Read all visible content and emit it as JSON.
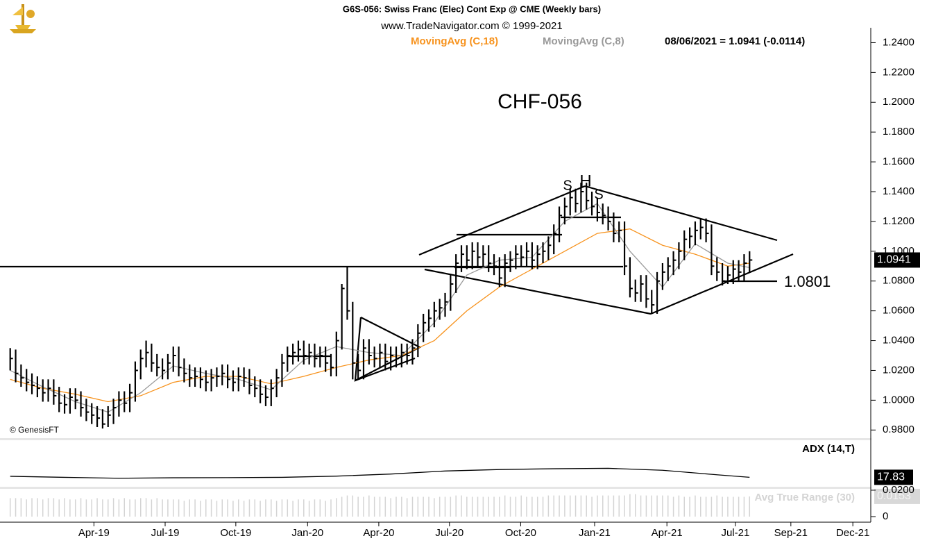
{
  "header": {
    "title": "G6S-056:  Swiss Franc (Elec) Cont Exp @ CME  (Weekly bars)",
    "subtitle": "www.TradeNavigator.com © 1999-2021",
    "quote": "08/06/2021 = 1.0941 (-0.0114)",
    "copyright": "© GenesisFT"
  },
  "chart_data": [
    {
      "type": "ohlc",
      "title": "CHF-056",
      "annotations": [
        "S",
        "H",
        "S",
        "1.0801"
      ],
      "color": "#000000",
      "xlim": [
        -0.6,
        158.3
      ],
      "xticks": [
        {
          "value": 15.4,
          "label": "Apr-19"
        },
        {
          "value": 28.5,
          "label": "Jul-19"
        },
        {
          "value": 41.5,
          "label": "Oct-19"
        },
        {
          "value": 54.7,
          "label": "Jan-20"
        },
        {
          "value": 67.8,
          "label": "Apr-20"
        },
        {
          "value": 80.8,
          "label": "Jul-20"
        },
        {
          "value": 93.9,
          "label": "Oct-20"
        },
        {
          "value": 107.5,
          "label": "Jan-21"
        },
        {
          "value": 120.8,
          "label": "Apr-21"
        },
        {
          "value": 133.4,
          "label": "Jul-21"
        },
        {
          "value": 143.6,
          "label": "Sep-21"
        },
        {
          "value": 155.0,
          "label": "Dec-21"
        }
      ],
      "ylim": [
        0.975,
        1.25
      ],
      "yticks": [
        {
          "value": 0.98,
          "label": "0.9800"
        },
        {
          "value": 1.0,
          "label": "1.0000"
        },
        {
          "value": 1.02,
          "label": "1.0200"
        },
        {
          "value": 1.04,
          "label": "1.0400"
        },
        {
          "value": 1.06,
          "label": "1.0600"
        },
        {
          "value": 1.08,
          "label": "1.0800"
        },
        {
          "value": 1.1,
          "label": "1.1000"
        },
        {
          "value": 1.12,
          "label": "1.1200"
        },
        {
          "value": 1.14,
          "label": "1.1400"
        },
        {
          "value": 1.16,
          "label": "1.1600"
        },
        {
          "value": 1.18,
          "label": "1.1800"
        },
        {
          "value": 1.2,
          "label": "1.2000"
        },
        {
          "value": 1.22,
          "label": "1.2200"
        },
        {
          "value": 1.24,
          "label": "1.2400"
        }
      ],
      "high": [
        1.035,
        1.034,
        1.024,
        1.021,
        1.018,
        1.016,
        1.014,
        1.014,
        1.014,
        1.009,
        1.004,
        1.008,
        1.008,
        1.006,
        1.001,
        0.998,
        0.996,
        0.994,
        0.996,
        1.001,
        1.006,
        1.006,
        1.011,
        1.026,
        1.034,
        1.04,
        1.038,
        1.031,
        1.028,
        1.031,
        1.036,
        1.036,
        1.028,
        1.024,
        1.022,
        1.022,
        1.02,
        1.021,
        1.022,
        1.024,
        1.024,
        1.02,
        1.022,
        1.022,
        1.021,
        1.016,
        1.014,
        1.01,
        1.014,
        1.021,
        1.031,
        1.036,
        1.038,
        1.04,
        1.04,
        1.038,
        1.038,
        1.036,
        1.036,
        1.031,
        1.046,
        1.078,
        1.09,
        1.066,
        1.031,
        1.041,
        1.041,
        1.036,
        1.038,
        1.038,
        1.036,
        1.036,
        1.038,
        1.038,
        1.041,
        1.051,
        1.058,
        1.061,
        1.066,
        1.068,
        1.072,
        1.084,
        1.098,
        1.104,
        1.104,
        1.106,
        1.106,
        1.104,
        1.104,
        1.098,
        1.096,
        1.098,
        1.1,
        1.104,
        1.104,
        1.106,
        1.106,
        1.104,
        1.106,
        1.11,
        1.118,
        1.13,
        1.136,
        1.142,
        1.142,
        1.146,
        1.146,
        1.14,
        1.136,
        1.132,
        1.13,
        1.126,
        1.12,
        1.12,
        1.096,
        1.081,
        1.084,
        1.084,
        1.074,
        1.086,
        1.092,
        1.096,
        1.1,
        1.106,
        1.114,
        1.116,
        1.12,
        1.122,
        1.122,
        1.118,
        1.096,
        1.092,
        1.09,
        1.094,
        1.094,
        1.098,
        1.1
      ],
      "low": [
        1.02,
        1.012,
        1.009,
        1.006,
        1.004,
        1.002,
        0.999,
        0.999,
        0.997,
        0.992,
        0.991,
        0.991,
        0.994,
        0.989,
        0.986,
        0.984,
        0.982,
        0.981,
        0.982,
        0.984,
        0.989,
        0.992,
        0.992,
        0.999,
        1.014,
        1.022,
        1.019,
        1.016,
        1.014,
        1.014,
        1.019,
        1.016,
        1.012,
        1.009,
        1.009,
        1.008,
        1.006,
        1.006,
        1.009,
        1.01,
        1.008,
        1.006,
        1.006,
        1.009,
        1.004,
        1.002,
        0.998,
        0.996,
        0.996,
        1.002,
        1.009,
        1.019,
        1.024,
        1.026,
        1.024,
        1.024,
        1.022,
        1.022,
        1.019,
        1.016,
        1.016,
        1.034,
        1.054,
        1.014,
        1.014,
        1.014,
        1.024,
        1.022,
        1.022,
        1.02,
        1.02,
        1.022,
        1.022,
        1.024,
        1.024,
        1.029,
        1.039,
        1.046,
        1.049,
        1.054,
        1.056,
        1.06,
        1.072,
        1.086,
        1.088,
        1.088,
        1.09,
        1.09,
        1.086,
        1.084,
        1.076,
        1.076,
        1.086,
        1.088,
        1.09,
        1.09,
        1.088,
        1.088,
        1.092,
        1.094,
        1.098,
        1.106,
        1.118,
        1.124,
        1.126,
        1.126,
        1.128,
        1.124,
        1.12,
        1.118,
        1.114,
        1.106,
        1.106,
        1.084,
        1.069,
        1.066,
        1.066,
        1.062,
        1.058,
        1.058,
        1.074,
        1.08,
        1.084,
        1.088,
        1.094,
        1.102,
        1.104,
        1.108,
        1.106,
        1.084,
        1.08,
        1.077,
        1.078,
        1.078,
        1.08,
        1.08,
        1.086
      ],
      "close": [
        1.028,
        1.018,
        1.015,
        1.012,
        1.01,
        1.008,
        1.005,
        1.008,
        1.003,
        0.998,
        0.997,
        1.002,
        1.0,
        0.995,
        0.992,
        0.99,
        0.988,
        0.984,
        0.99,
        0.995,
        1.0,
        0.998,
        1.005,
        1.02,
        1.028,
        1.032,
        1.025,
        1.022,
        1.02,
        1.025,
        1.03,
        1.022,
        1.018,
        1.015,
        1.016,
        1.014,
        1.012,
        1.015,
        1.016,
        1.018,
        1.014,
        1.012,
        1.016,
        1.015,
        1.01,
        1.008,
        1.004,
        1.002,
        1.008,
        1.015,
        1.025,
        1.03,
        1.032,
        1.034,
        1.03,
        1.032,
        1.028,
        1.03,
        1.025,
        1.022,
        1.04,
        1.075,
        1.06,
        1.025,
        1.02,
        1.035,
        1.03,
        1.028,
        1.032,
        1.026,
        1.03,
        1.028,
        1.032,
        1.03,
        1.035,
        1.045,
        1.052,
        1.055,
        1.06,
        1.062,
        1.066,
        1.078,
        1.092,
        1.098,
        1.094,
        1.1,
        1.096,
        1.098,
        1.092,
        1.09,
        1.082,
        1.092,
        1.094,
        1.098,
        1.096,
        1.1,
        1.094,
        1.098,
        1.1,
        1.104,
        1.112,
        1.124,
        1.13,
        1.136,
        1.132,
        1.14,
        1.134,
        1.13,
        1.126,
        1.124,
        1.12,
        1.112,
        1.114,
        1.09,
        1.075,
        1.072,
        1.078,
        1.068,
        1.064,
        1.08,
        1.086,
        1.09,
        1.094,
        1.1,
        1.108,
        1.11,
        1.114,
        1.116,
        1.112,
        1.09,
        1.086,
        1.08,
        1.084,
        1.088,
        1.086,
        1.092,
        1.0941
      ],
      "series": [
        {
          "name": "MovingAvg (C,18)",
          "color": "#f7931e",
          "x": [
            0,
            6,
            12,
            18,
            24,
            30,
            36,
            42,
            48,
            54,
            60,
            66,
            72,
            78,
            84,
            90,
            96,
            102,
            108,
            114,
            120,
            126,
            132,
            136
          ],
          "values": [
            1.014,
            1.008,
            1.004,
            0.999,
            1.003,
            1.012,
            1.016,
            1.016,
            1.011,
            1.016,
            1.022,
            1.027,
            1.03,
            1.04,
            1.06,
            1.076,
            1.088,
            1.1,
            1.112,
            1.115,
            1.104,
            1.098,
            1.09,
            1.092
          ]
        },
        {
          "name": "MovingAvg (C,8)",
          "color": "#999999",
          "x": [
            0,
            6,
            12,
            18,
            24,
            30,
            36,
            42,
            48,
            54,
            60,
            66,
            72,
            78,
            84,
            90,
            96,
            102,
            108,
            114,
            120,
            126,
            132,
            136
          ],
          "values": [
            1.02,
            1.009,
            0.999,
            0.992,
            1.005,
            1.023,
            1.018,
            1.014,
            1.007,
            1.027,
            1.036,
            1.032,
            1.03,
            1.052,
            1.084,
            1.094,
            1.096,
            1.12,
            1.132,
            1.1,
            1.076,
            1.105,
            1.092,
            1.089
          ]
        }
      ]
    },
    {
      "type": "line",
      "ylim": [
        12,
        42
      ],
      "series": [
        {
          "name": "ADX (14,T)",
          "color": "#000000",
          "x": [
            0,
            10,
            20,
            30,
            40,
            50,
            60,
            70,
            80,
            90,
            100,
            110,
            120,
            130,
            136
          ],
          "values": [
            18.5,
            17.8,
            17.2,
            17.5,
            17.6,
            17.8,
            18.6,
            20.0,
            22.0,
            23.0,
            23.5,
            23.8,
            22.5,
            19.5,
            17.83
          ]
        }
      ]
    },
    {
      "type": "bar",
      "ylim": [
        0,
        0.0205
      ],
      "yticks": [
        {
          "value": 0.02,
          "label": "0.0200"
        },
        0
      ],
      "series": [
        {
          "name": "Avg True Range (30)",
          "color": "#d4d4d4",
          "values": [
            0.014,
            0.014,
            0.014,
            0.013,
            0.014,
            0.014,
            0.013,
            0.014,
            0.014,
            0.013,
            0.014,
            0.013,
            0.013,
            0.014,
            0.013,
            0.013,
            0.014,
            0.013,
            0.013,
            0.014,
            0.013,
            0.014,
            0.013,
            0.013,
            0.014,
            0.014,
            0.013,
            0.014,
            0.013,
            0.013,
            0.013,
            0.013,
            0.012,
            0.013,
            0.013,
            0.012,
            0.013,
            0.013,
            0.012,
            0.013,
            0.013,
            0.012,
            0.013,
            0.012,
            0.013,
            0.013,
            0.012,
            0.013,
            0.013,
            0.012,
            0.013,
            0.013,
            0.012,
            0.013,
            0.013,
            0.012,
            0.013,
            0.013,
            0.012,
            0.013,
            0.014,
            0.015,
            0.016,
            0.016,
            0.015,
            0.015,
            0.016,
            0.015,
            0.015,
            0.015,
            0.014,
            0.015,
            0.015,
            0.014,
            0.015,
            0.015,
            0.015,
            0.015,
            0.014,
            0.015,
            0.015,
            0.015,
            0.016,
            0.016,
            0.015,
            0.015,
            0.015,
            0.015,
            0.015,
            0.015,
            0.015,
            0.016,
            0.015,
            0.015,
            0.016,
            0.015,
            0.015,
            0.015,
            0.015,
            0.016,
            0.016,
            0.016,
            0.016,
            0.016,
            0.016,
            0.016,
            0.016,
            0.015,
            0.016,
            0.016,
            0.016,
            0.016,
            0.016,
            0.016,
            0.017,
            0.017,
            0.016,
            0.016,
            0.016,
            0.016,
            0.016,
            0.016,
            0.015,
            0.016,
            0.015,
            0.015,
            0.016,
            0.015,
            0.015,
            0.015,
            0.016,
            0.015,
            0.015,
            0.015,
            0.015,
            0.015,
            0.0153
          ]
        }
      ]
    }
  ]
}
